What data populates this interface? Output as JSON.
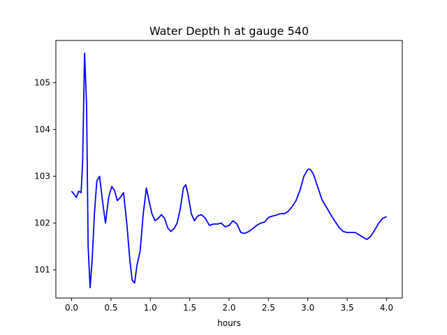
{
  "chart_data": {
    "type": "line",
    "title": "Water Depth h at gauge 540",
    "xlabel": "hours",
    "ylabel": "",
    "xlim": [
      -0.2,
      4.2
    ],
    "ylim": [
      100.4,
      105.9
    ],
    "xticks": [
      0.0,
      0.5,
      1.0,
      1.5,
      2.0,
      2.5,
      3.0,
      3.5,
      4.0
    ],
    "xtick_labels": [
      "0.0",
      "0.5",
      "1.0",
      "1.5",
      "2.0",
      "2.5",
      "3.0",
      "3.5",
      "4.0"
    ],
    "yticks": [
      101,
      102,
      103,
      104,
      105
    ],
    "ytick_labels": [
      "101",
      "102",
      "103",
      "104",
      "105"
    ],
    "grid": false,
    "series": [
      {
        "color": "#0000ff",
        "x": [
          0.0,
          0.03,
          0.06,
          0.09,
          0.12,
          0.14,
          0.165,
          0.19,
          0.21,
          0.235,
          0.26,
          0.29,
          0.32,
          0.355,
          0.39,
          0.43,
          0.47,
          0.51,
          0.545,
          0.58,
          0.62,
          0.66,
          0.7,
          0.74,
          0.77,
          0.8,
          0.83,
          0.87,
          0.91,
          0.95,
          0.98,
          1.02,
          1.06,
          1.1,
          1.14,
          1.18,
          1.22,
          1.26,
          1.3,
          1.34,
          1.38,
          1.42,
          1.45,
          1.48,
          1.52,
          1.56,
          1.6,
          1.65,
          1.7,
          1.75,
          1.8,
          1.85,
          1.9,
          1.95,
          2.0,
          2.05,
          2.1,
          2.15,
          2.2,
          2.25,
          2.3,
          2.35,
          2.4,
          2.45,
          2.5,
          2.55,
          2.6,
          2.65,
          2.7,
          2.75,
          2.8,
          2.85,
          2.9,
          2.95,
          3.0,
          3.03,
          3.07,
          3.12,
          3.18,
          3.25,
          3.32,
          3.4,
          3.45,
          3.5,
          3.55,
          3.6,
          3.65,
          3.7,
          3.75,
          3.8,
          3.85,
          3.9,
          3.95,
          4.0
        ],
        "y": [
          102.68,
          102.62,
          102.55,
          102.68,
          102.65,
          103.3,
          105.63,
          104.5,
          101.5,
          100.62,
          101.2,
          102.2,
          102.9,
          103.0,
          102.5,
          102.0,
          102.55,
          102.78,
          102.7,
          102.48,
          102.55,
          102.65,
          102.0,
          101.2,
          100.78,
          100.72,
          101.1,
          101.4,
          102.2,
          102.75,
          102.5,
          102.2,
          102.05,
          102.1,
          102.18,
          102.1,
          101.9,
          101.82,
          101.88,
          102.0,
          102.3,
          102.75,
          102.82,
          102.6,
          102.2,
          102.05,
          102.15,
          102.18,
          102.1,
          101.95,
          101.98,
          101.98,
          102.0,
          101.92,
          101.95,
          102.05,
          101.98,
          101.8,
          101.78,
          101.82,
          101.88,
          101.95,
          102.0,
          102.02,
          102.12,
          102.15,
          102.17,
          102.2,
          102.2,
          102.25,
          102.35,
          102.48,
          102.7,
          103.0,
          103.15,
          103.15,
          103.05,
          102.8,
          102.5,
          102.3,
          102.1,
          101.9,
          101.82,
          101.8,
          101.8,
          101.8,
          101.75,
          101.7,
          101.65,
          101.72,
          101.85,
          102.0,
          102.1,
          102.14
        ]
      }
    ]
  }
}
